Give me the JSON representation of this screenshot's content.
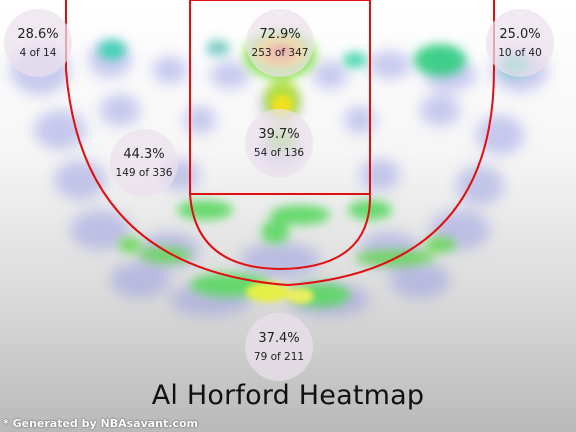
{
  "chart_data": {
    "type": "heatmap",
    "title": "Al Horford Heatmap",
    "zones": [
      {
        "name": "left-corner-three",
        "pct": "28.6%",
        "made": 4,
        "attempts": 14
      },
      {
        "name": "restricted-area",
        "pct": "72.9%",
        "made": 253,
        "attempts": 347
      },
      {
        "name": "right-corner-three",
        "pct": "25.0%",
        "made": 10,
        "attempts": 40
      },
      {
        "name": "mid-range",
        "pct": "44.3%",
        "made": 149,
        "attempts": 336
      },
      {
        "name": "paint-non-ra",
        "pct": "39.7%",
        "made": 54,
        "attempts": 136
      },
      {
        "name": "above-break-three",
        "pct": "37.4%",
        "made": 79,
        "attempts": 211
      }
    ]
  },
  "zone_labels": [
    {
      "pct": "28.6%",
      "count": "4 of 14"
    },
    {
      "pct": "72.9%",
      "count": "253 of 347"
    },
    {
      "pct": "25.0%",
      "count": "10 of 40"
    },
    {
      "pct": "44.3%",
      "count": "149 of 336"
    },
    {
      "pct": "39.7%",
      "count": "54 of 136"
    },
    {
      "pct": "37.4%",
      "count": "79 of 211"
    }
  ],
  "footer": "* Generated by NBAsavant.com",
  "colors": {
    "court_lines": "#e01010",
    "zone_bubble": "#ebe1eb"
  }
}
